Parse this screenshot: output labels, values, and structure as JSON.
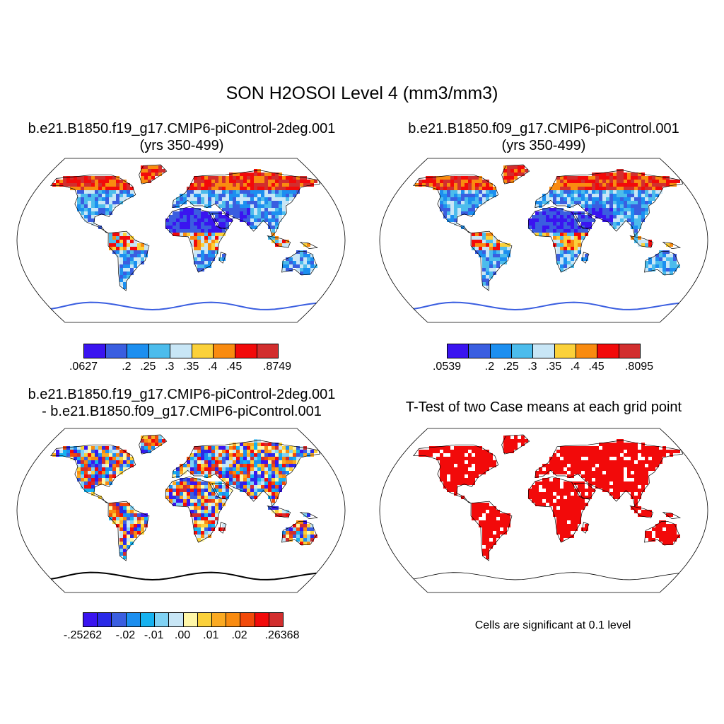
{
  "title": "SON H2OSOI Level 4 (mm3/mm3)",
  "panels": [
    {
      "id": "case1",
      "title_line1": "b.e21.B1850.f19_g17.CMIP6-piControl-2deg.001",
      "title_line2": "(yrs 350-499)",
      "palette": [
        "#3a14f0",
        "#3a5ee0",
        "#1c8ff0",
        "#4cbcec",
        "#c8e6f6",
        "#fbd13a",
        "#f98b10",
        "#f20a0a",
        "#d22e2e"
      ],
      "ticks": [
        ".0627",
        ".2",
        ".25",
        ".3",
        ".35",
        ".4",
        ".45",
        ".8749"
      ]
    },
    {
      "id": "case2",
      "title_line1": "b.e21.B1850.f09_g17.CMIP6-piControl.001",
      "title_line2": "(yrs 350-499)",
      "palette": [
        "#3a14f0",
        "#3a5ee0",
        "#1c8ff0",
        "#4cbcec",
        "#c8e6f6",
        "#fbd13a",
        "#f98b10",
        "#f20a0a",
        "#d22e2e"
      ],
      "ticks": [
        ".0539",
        ".2",
        ".25",
        ".3",
        ".35",
        ".4",
        ".45",
        ".8095"
      ]
    },
    {
      "id": "difference",
      "title_line1": "b.e21.B1850.f19_g17.CMIP6-piControl-2deg.001",
      "title_line2": "- b.e21.B1850.f09_g17.CMIP6-piControl.001",
      "palette": [
        "#3a14f0",
        "#2a2ae8",
        "#3a5ee0",
        "#1c8ff0",
        "#16b2f0",
        "#80d2f4",
        "#c8e6f6",
        "#fff7a8",
        "#fbd13a",
        "#fbaa22",
        "#f98b10",
        "#f24a0a",
        "#f20a0a",
        "#d22e2e"
      ],
      "ticks": [
        "-.25262",
        "-.02",
        "-.01",
        ".00",
        ".01",
        ".02",
        ".26368"
      ]
    },
    {
      "id": "ttest",
      "title_line1": "T-Test of two Case means at each grid point",
      "note": "Cells are significant at 0.1 level",
      "fill_color": "#f20a0a"
    }
  ]
}
